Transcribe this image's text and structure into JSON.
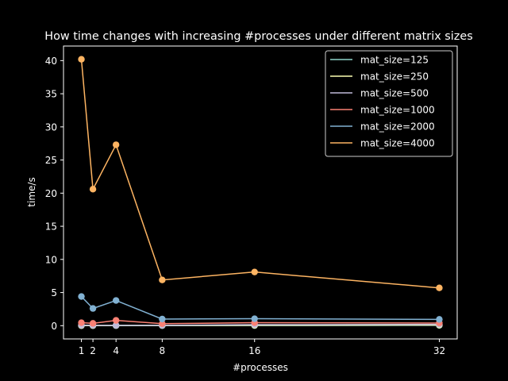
{
  "chart_data": {
    "type": "line",
    "title": "How time changes with increasing #processes under different matrix sizes",
    "xlabel": "#processes",
    "ylabel": "time/s",
    "x": [
      1,
      2,
      4,
      8,
      16,
      32
    ],
    "x_ticks": [
      1,
      2,
      4,
      8,
      16,
      32
    ],
    "y_ticks": [
      0,
      5,
      10,
      15,
      20,
      25,
      30,
      35,
      40
    ],
    "xlim": [
      -0.55,
      33.55
    ],
    "ylim": [
      -2.0,
      42.2
    ],
    "grid": false,
    "legend_position": "top-right",
    "markers": "circle",
    "series": [
      {
        "name": "mat_size=125",
        "color": "#8dd3c7",
        "values": [
          0.01,
          0.01,
          0.01,
          0.01,
          0.02,
          0.05
        ]
      },
      {
        "name": "mat_size=250",
        "color": "#feffb3",
        "values": [
          0.02,
          0.02,
          0.03,
          0.03,
          0.06,
          0.1
        ]
      },
      {
        "name": "mat_size=500",
        "color": "#bfbbd9",
        "values": [
          0.08,
          0.06,
          0.05,
          0.05,
          0.15,
          0.2
        ]
      },
      {
        "name": "mat_size=1000",
        "color": "#fa8174",
        "values": [
          0.45,
          0.35,
          0.8,
          0.3,
          0.45,
          0.4
        ]
      },
      {
        "name": "mat_size=2000",
        "color": "#81b1d2",
        "values": [
          4.4,
          2.6,
          3.8,
          1.0,
          1.05,
          0.95
        ]
      },
      {
        "name": "mat_size=4000",
        "color": "#fdb462",
        "values": [
          40.2,
          20.6,
          27.3,
          6.9,
          8.1,
          5.7
        ]
      }
    ]
  }
}
